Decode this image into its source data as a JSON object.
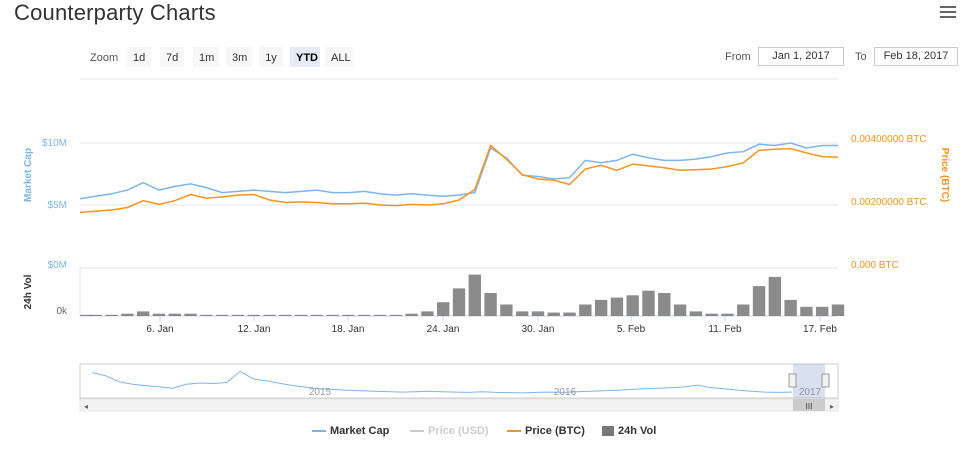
{
  "header": {
    "title": "Counterparty Charts"
  },
  "range_selector": {
    "zoom_label": "Zoom",
    "buttons": [
      "1d",
      "7d",
      "1m",
      "3m",
      "1y",
      "YTD",
      "ALL"
    ],
    "active": "YTD",
    "from_label": "From",
    "from_value": "Jan 1, 2017",
    "to_label": "To",
    "to_value": "Feb 18, 2017"
  },
  "legend": {
    "market_cap": "Market Cap",
    "price_usd": "Price (USD)",
    "price_btc": "Price (BTC)",
    "vol": "24h Vol"
  },
  "colors": {
    "market_cap": "#7cb5ec",
    "price_btc": "#f7931e",
    "vol": "#777777",
    "price_usd_off": "#cccccc"
  },
  "chart_data": {
    "type": "line",
    "x_ticks": [
      "6. Jan",
      "12. Jan",
      "18. Jan",
      "24. Jan",
      "30. Jan",
      "5. Feb",
      "11. Feb",
      "17. Feb"
    ],
    "left_axis": {
      "label": "Market Cap",
      "ticks": [
        "$10M",
        "$5M"
      ]
    },
    "right_axis": {
      "label": "Price (BTC)",
      "ticks": [
        "0.00400000 BTC",
        "0.00200000 BTC"
      ]
    },
    "vol_axis": {
      "label": "24h Vol",
      "left_ticks": [
        "$0M",
        "0k"
      ],
      "right_tick": "0.000 BTC"
    },
    "series": [
      {
        "name": "Market Cap",
        "values": [
          5.5,
          5.7,
          5.9,
          6.2,
          6.8,
          6.2,
          6.5,
          6.7,
          6.4,
          6.0,
          6.1,
          6.2,
          6.1,
          6.0,
          6.1,
          6.2,
          6.0,
          6.0,
          6.1,
          5.9,
          5.8,
          5.9,
          5.8,
          5.7,
          5.8,
          6.0,
          9.6,
          8.8,
          7.4,
          7.3,
          7.1,
          7.2,
          8.6,
          8.4,
          8.6,
          9.1,
          8.8,
          8.6,
          8.6,
          8.7,
          8.9,
          9.2,
          9.3,
          9.9,
          9.8,
          10.0,
          9.6,
          9.8,
          9.8
        ]
      },
      {
        "name": "Price (BTC)",
        "values": [
          0.00176,
          0.0018,
          0.00184,
          0.00192,
          0.00214,
          0.00202,
          0.00214,
          0.00234,
          0.00222,
          0.00226,
          0.00232,
          0.00234,
          0.00216,
          0.00208,
          0.0021,
          0.00208,
          0.00204,
          0.00204,
          0.00206,
          0.002,
          0.00198,
          0.00202,
          0.002,
          0.00204,
          0.00216,
          0.0025,
          0.00392,
          0.00348,
          0.00298,
          0.00284,
          0.0028,
          0.00266,
          0.00316,
          0.00328,
          0.00312,
          0.00332,
          0.00326,
          0.0032,
          0.00312,
          0.00314,
          0.00316,
          0.00324,
          0.00336,
          0.00376,
          0.0038,
          0.00382,
          0.00368,
          0.00356,
          0.00354
        ]
      },
      {
        "name": "24h Vol",
        "values": [
          1,
          1,
          1,
          2,
          4,
          2,
          2,
          2,
          1,
          1,
          1,
          1,
          1,
          1,
          1,
          1,
          1,
          1,
          1,
          1,
          1,
          2,
          4,
          12,
          24,
          36,
          20,
          10,
          4,
          4,
          3,
          3,
          10,
          14,
          16,
          18,
          22,
          20,
          10,
          4,
          2,
          2,
          10,
          26,
          34,
          14,
          8,
          8,
          10
        ]
      }
    ],
    "navigator": {
      "labels": [
        "2015",
        "2016",
        "2017"
      ]
    }
  }
}
